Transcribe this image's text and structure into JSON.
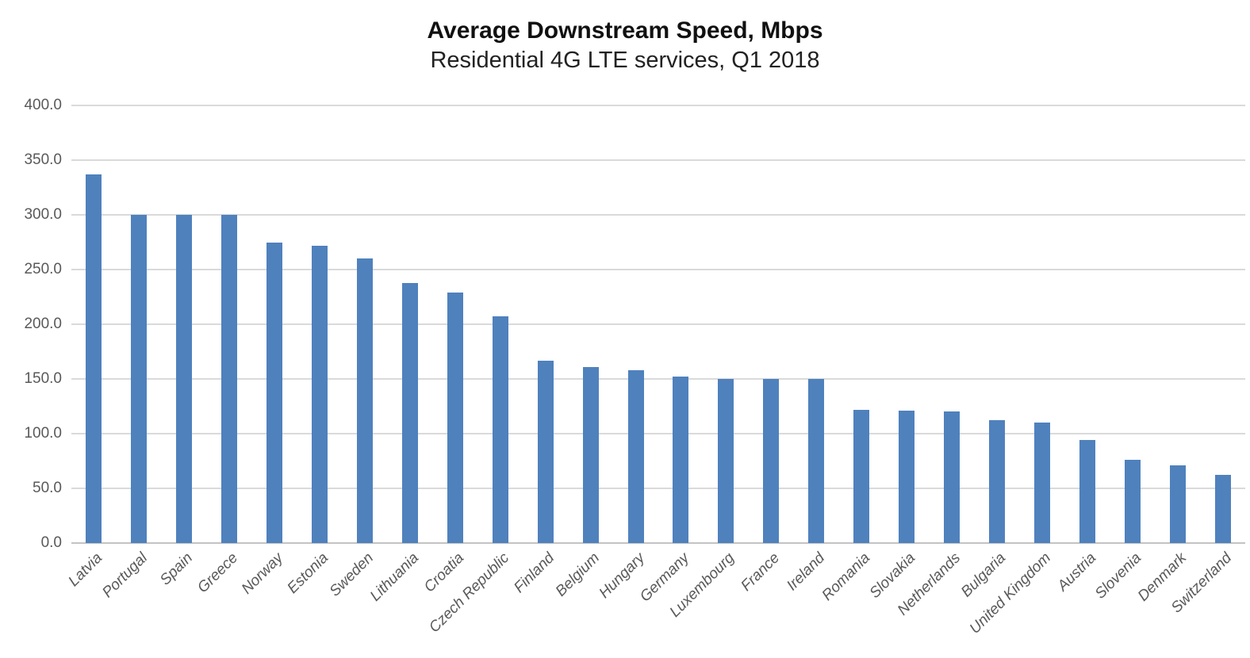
{
  "title": "Average Downstream Speed, Mbps",
  "subtitle": "Residential 4G LTE services, Q1 2018",
  "chart_data": {
    "type": "bar",
    "title": "Average Downstream Speed, Mbps",
    "subtitle": "Residential 4G LTE services, Q1 2018",
    "categories": [
      "Latvia",
      "Portugal",
      "Spain",
      "Greece",
      "Norway",
      "Estonia",
      "Sweden",
      "Lithuania",
      "Croatia",
      "Czech Republic",
      "Finland",
      "Belgium",
      "Hungary",
      "Germany",
      "Luxembourg",
      "France",
      "Ireland",
      "Romania",
      "Slovakia",
      "Netherlands",
      "Bulgaria",
      "United Kingdom",
      "Austria",
      "Slovenia",
      "Denmark",
      "Switzerland"
    ],
    "values": [
      337,
      300,
      300,
      300,
      275,
      272,
      260,
      238,
      229,
      207,
      167,
      161,
      158,
      152,
      150,
      150,
      150,
      122,
      121,
      120,
      112,
      110,
      94,
      76,
      71,
      62
    ],
    "xlabel": "",
    "ylabel": "",
    "ylim": [
      0,
      400
    ],
    "ytick_interval": 50,
    "ytick_labels": [
      "0.0",
      "50.0",
      "100.0",
      "150.0",
      "200.0",
      "250.0",
      "300.0",
      "350.0",
      "400.0"
    ],
    "grid": true,
    "legend_position": "none",
    "bar_color": "#4f81bd",
    "gridline_color": "#dadada",
    "axis_label_color": "#595959",
    "x_labels_rotation_deg": 45,
    "x_labels_italic": true
  }
}
